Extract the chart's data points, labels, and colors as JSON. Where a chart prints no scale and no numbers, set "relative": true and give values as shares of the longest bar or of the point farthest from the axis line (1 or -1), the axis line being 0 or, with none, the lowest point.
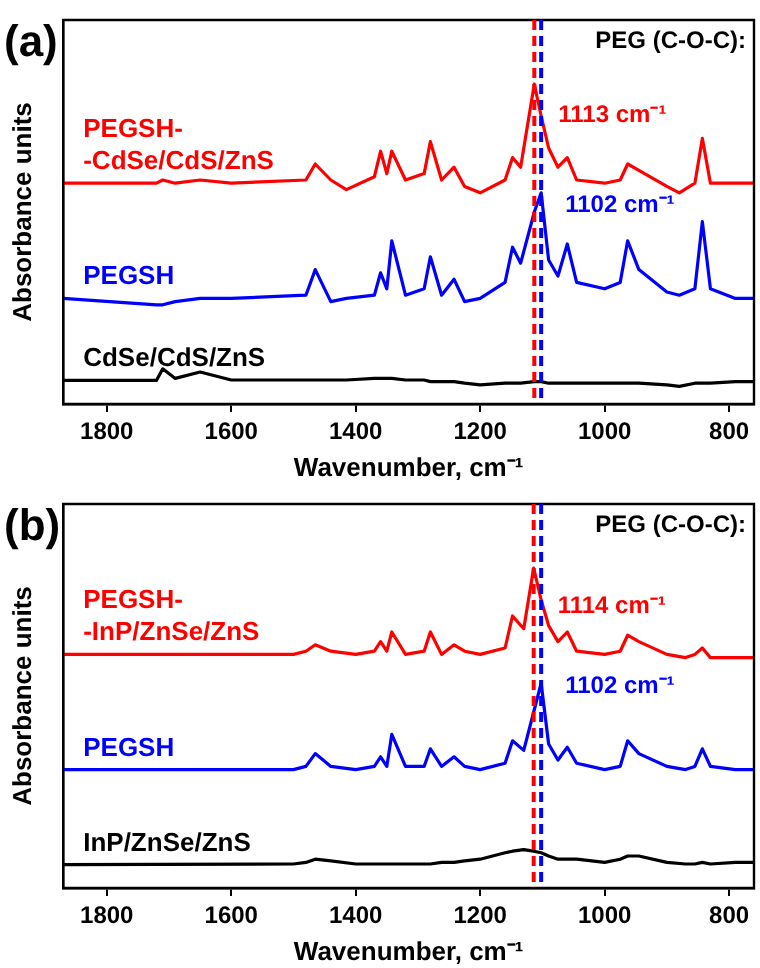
{
  "chart_data": [
    {
      "type": "line",
      "title": "(a)",
      "xlabel": "Wavenumber, cm⁻¹",
      "ylabel": "Absorbance units",
      "relative": true,
      "xlim": [
        1870,
        760
      ],
      "xticks": [
        1800,
        1600,
        1400,
        1200,
        1000,
        800
      ],
      "grid": false,
      "legend": false,
      "marker": "none",
      "line_style": "solid",
      "x": [
        1870,
        1720,
        1710,
        1690,
        1650,
        1600,
        1480,
        1465,
        1440,
        1415,
        1370,
        1360,
        1350,
        1342,
        1320,
        1290,
        1280,
        1262,
        1242,
        1225,
        1200,
        1160,
        1148,
        1135,
        1113,
        1102,
        1090,
        1075,
        1060,
        1045,
        1000,
        975,
        963,
        945,
        900,
        880,
        855,
        843,
        830,
        790,
        760
      ],
      "series": [
        {
          "name": "PEGSH-\n-CdSe/CdS/ZnS",
          "color": "#ff0000",
          "values": [
            0.69,
            0.69,
            0.7,
            0.69,
            0.7,
            0.69,
            0.7,
            0.75,
            0.7,
            0.67,
            0.71,
            0.79,
            0.72,
            0.79,
            0.7,
            0.72,
            0.82,
            0.7,
            0.74,
            0.68,
            0.66,
            0.7,
            0.77,
            0.74,
            1.0,
            0.9,
            0.8,
            0.74,
            0.77,
            0.7,
            0.69,
            0.7,
            0.75,
            0.73,
            0.68,
            0.66,
            0.69,
            0.83,
            0.69,
            0.69,
            0.69
          ]
        },
        {
          "name": "PEGSH",
          "color": "#0000ff",
          "values": [
            0.33,
            0.31,
            0.31,
            0.32,
            0.33,
            0.33,
            0.34,
            0.42,
            0.32,
            0.33,
            0.34,
            0.41,
            0.36,
            0.51,
            0.34,
            0.36,
            0.46,
            0.34,
            0.39,
            0.32,
            0.33,
            0.38,
            0.49,
            0.44,
            0.6,
            0.66,
            0.45,
            0.4,
            0.5,
            0.38,
            0.36,
            0.38,
            0.51,
            0.42,
            0.35,
            0.34,
            0.36,
            0.57,
            0.36,
            0.33,
            0.33
          ]
        },
        {
          "name": "CdSe/CdS/ZnS",
          "color": "#000000",
          "values": [
            0.074,
            0.074,
            0.11,
            0.08,
            0.1,
            0.075,
            0.075,
            0.075,
            0.075,
            0.075,
            0.08,
            0.08,
            0.08,
            0.08,
            0.075,
            0.075,
            0.07,
            0.07,
            0.07,
            0.065,
            0.06,
            0.065,
            0.065,
            0.065,
            0.07,
            0.07,
            0.065,
            0.065,
            0.065,
            0.065,
            0.065,
            0.065,
            0.065,
            0.065,
            0.06,
            0.055,
            0.065,
            0.065,
            0.065,
            0.07,
            0.07
          ]
        }
      ],
      "ref_lines": [
        {
          "axis": "x",
          "value": 1113,
          "color": "#ff0000",
          "line_style": "dashed"
        },
        {
          "axis": "x",
          "value": 1102,
          "color": "#0000ff",
          "line_style": "dashed"
        }
      ],
      "annotations": [
        "PEG (C-O-C):",
        {
          "text": "1113 cm⁻¹",
          "x": 1113,
          "y": 0.88
        },
        {
          "text": "1102 cm⁻¹",
          "x": 1102,
          "y": 0.6
        }
      ]
    },
    {
      "type": "line",
      "title": "(b)",
      "xlabel": "Wavenumber, cm⁻¹",
      "ylabel": "Absorbance units",
      "relative": true,
      "xlim": [
        1870,
        760
      ],
      "xticks": [
        1800,
        1600,
        1400,
        1200,
        1000,
        800
      ],
      "grid": false,
      "legend": false,
      "marker": "none",
      "line_style": "solid",
      "x": [
        1870,
        1500,
        1480,
        1465,
        1440,
        1400,
        1370,
        1360,
        1350,
        1342,
        1320,
        1290,
        1280,
        1262,
        1242,
        1225,
        1200,
        1160,
        1148,
        1130,
        1114,
        1102,
        1090,
        1075,
        1060,
        1045,
        1000,
        975,
        963,
        945,
        900,
        870,
        855,
        843,
        830,
        790,
        760
      ],
      "series": [
        {
          "name": "PEGSH-\n-InP/ZnSe/ZnS",
          "color": "#ff0000",
          "values": [
            0.73,
            0.73,
            0.74,
            0.76,
            0.74,
            0.73,
            0.74,
            0.77,
            0.74,
            0.8,
            0.73,
            0.74,
            0.8,
            0.73,
            0.76,
            0.74,
            0.73,
            0.75,
            0.85,
            0.81,
            1.0,
            0.9,
            0.82,
            0.77,
            0.8,
            0.74,
            0.73,
            0.74,
            0.79,
            0.77,
            0.73,
            0.72,
            0.73,
            0.75,
            0.72,
            0.72,
            0.72
          ]
        },
        {
          "name": "PEGSH",
          "color": "#0000ff",
          "values": [
            0.37,
            0.37,
            0.38,
            0.42,
            0.38,
            0.37,
            0.38,
            0.41,
            0.38,
            0.48,
            0.38,
            0.38,
            0.435,
            0.38,
            0.41,
            0.38,
            0.37,
            0.39,
            0.46,
            0.43,
            0.55,
            0.64,
            0.45,
            0.4,
            0.44,
            0.39,
            0.37,
            0.38,
            0.46,
            0.42,
            0.38,
            0.37,
            0.38,
            0.435,
            0.38,
            0.37,
            0.37
          ]
        },
        {
          "name": "InP/ZnSe/ZnS",
          "color": "#000000",
          "values": [
            0.073,
            0.075,
            0.08,
            0.09,
            0.085,
            0.075,
            0.075,
            0.075,
            0.075,
            0.075,
            0.075,
            0.075,
            0.075,
            0.08,
            0.08,
            0.085,
            0.09,
            0.11,
            0.115,
            0.12,
            0.115,
            0.11,
            0.1,
            0.09,
            0.09,
            0.09,
            0.08,
            0.09,
            0.1,
            0.1,
            0.08,
            0.075,
            0.075,
            0.08,
            0.075,
            0.08,
            0.08
          ]
        }
      ],
      "ref_lines": [
        {
          "axis": "x",
          "value": 1114,
          "color": "#ff0000",
          "line_style": "dashed"
        },
        {
          "axis": "x",
          "value": 1102,
          "color": "#0000ff",
          "line_style": "dashed"
        }
      ],
      "annotations": [
        "PEG (C-O-C):",
        {
          "text": "1114 cm⁻¹",
          "x": 1114,
          "y": 0.86
        },
        {
          "text": "1102 cm⁻¹",
          "x": 1102,
          "y": 0.61
        }
      ]
    }
  ]
}
